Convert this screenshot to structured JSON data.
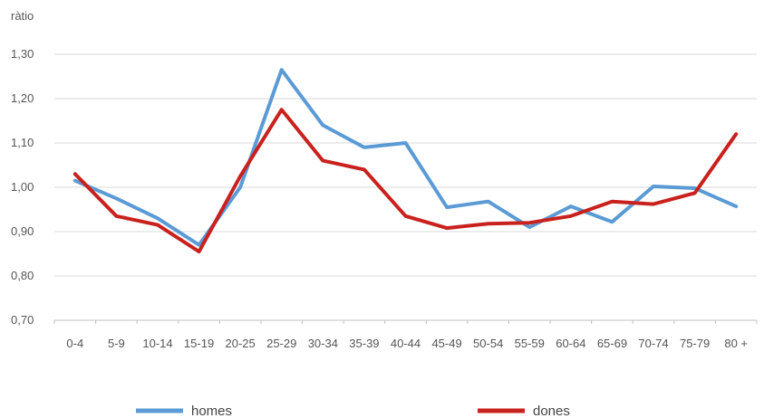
{
  "chart_data": {
    "type": "line",
    "ylabel": "ràtio",
    "ylim": [
      0.7,
      1.3
    ],
    "yticks": [
      "0,70",
      "0,80",
      "0,90",
      "1,00",
      "1,10",
      "1,20",
      "1,30"
    ],
    "ytick_values": [
      0.7,
      0.8,
      0.9,
      1.0,
      1.1,
      1.2,
      1.3
    ],
    "categories": [
      "0-4",
      "5-9",
      "10-14",
      "15-19",
      "20-25",
      "25-29",
      "30-34",
      "35-39",
      "40-44",
      "45-49",
      "50-54",
      "55-59",
      "60-64",
      "65-69",
      "70-74",
      "75-79",
      "80 +"
    ],
    "series": [
      {
        "name": "homes",
        "color": "#5b9bd5",
        "values": [
          1.015,
          0.975,
          0.93,
          0.87,
          1.0,
          1.265,
          1.14,
          1.09,
          1.1,
          0.955,
          0.968,
          0.91,
          0.957,
          0.922,
          1.002,
          0.998,
          0.957
        ]
      },
      {
        "name": "dones",
        "color": "#c9211e",
        "values": [
          1.03,
          0.935,
          0.915,
          0.855,
          1.025,
          1.175,
          1.06,
          1.04,
          0.935,
          0.908,
          0.918,
          0.92,
          0.935,
          0.968,
          0.962,
          0.987,
          1.12
        ]
      }
    ],
    "grid": true,
    "legend": "bottom"
  }
}
